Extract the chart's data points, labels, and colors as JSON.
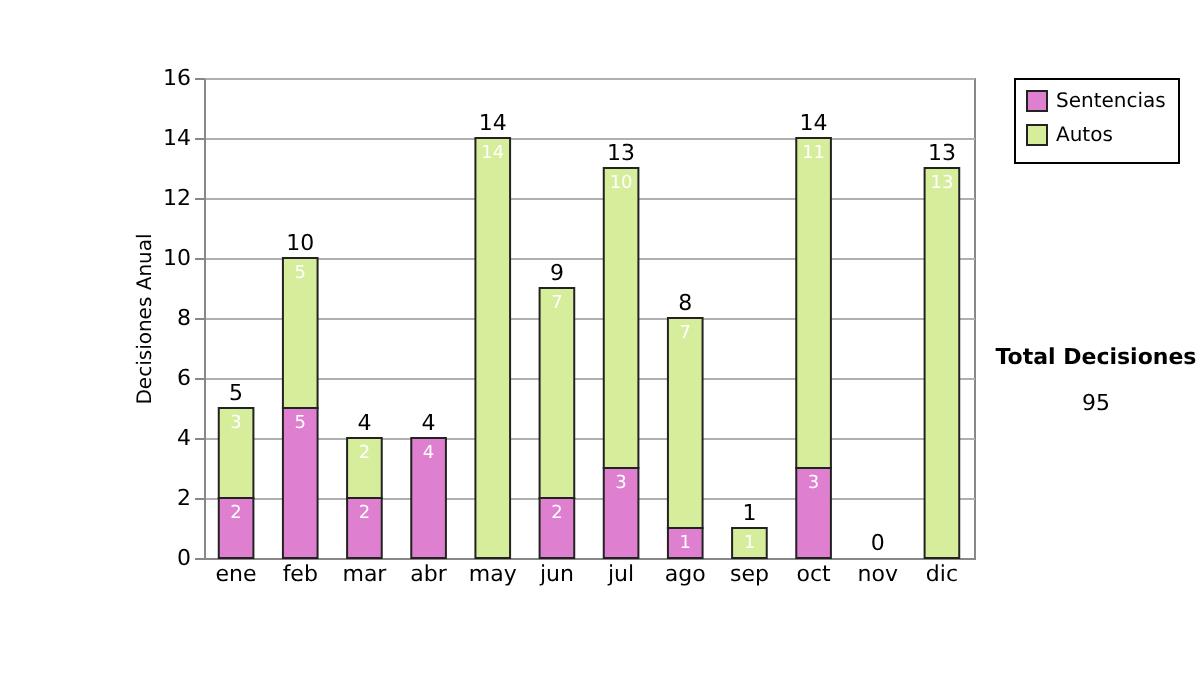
{
  "chart_data": {
    "type": "bar",
    "stacked": true,
    "ylabel": "Decisiones Anual",
    "categories": [
      "ene",
      "feb",
      "mar",
      "abr",
      "may",
      "jun",
      "jul",
      "ago",
      "sep",
      "oct",
      "nov",
      "dic"
    ],
    "series": [
      {
        "name": "Sentencias",
        "color": "#de7fcf",
        "values": [
          2,
          5,
          2,
          4,
          0,
          2,
          3,
          1,
          0,
          3,
          0,
          0
        ],
        "value_labels": [
          "2",
          "5",
          "2",
          "4",
          null,
          "2",
          "3",
          "1",
          null,
          "3",
          null,
          null
        ]
      },
      {
        "name": "Autos",
        "color": "#d6ed9c",
        "values": [
          3,
          5,
          2,
          0,
          14,
          7,
          10,
          7,
          1,
          11,
          0,
          13
        ],
        "value_labels": [
          "3",
          "5",
          "2",
          null,
          "14",
          "7",
          "10",
          "7",
          "1",
          "11",
          null,
          "13"
        ]
      }
    ],
    "totals": [
      "5",
      "10",
      "4",
      "4",
      "14",
      "9",
      "13",
      "8",
      "1",
      "14",
      "0",
      "13"
    ],
    "ylim": [
      0,
      16
    ],
    "yticks": [
      0,
      2,
      4,
      6,
      8,
      10,
      12,
      14,
      16
    ],
    "grid": "y",
    "legend": "right",
    "annotations": [
      "Total Decisiones",
      "95"
    ]
  }
}
